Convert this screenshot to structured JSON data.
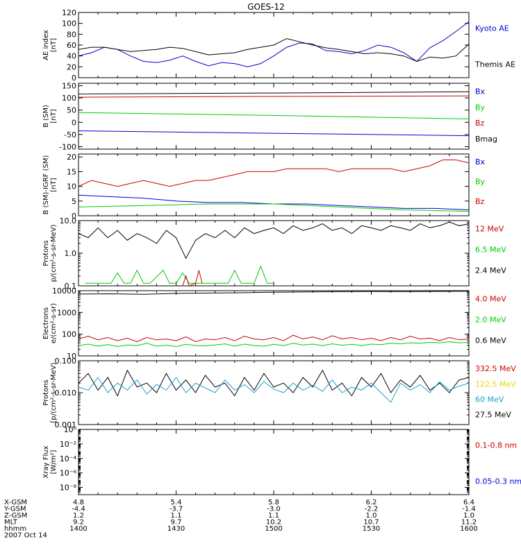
{
  "title": "GOES-12",
  "colors": {
    "black": "#000000",
    "blue": "#0000d0",
    "red": "#cc0000",
    "green": "#00cc00",
    "yellow": "#e8d800",
    "cyan": "#1aa0d0"
  },
  "chart_data": [
    {
      "id": "ae",
      "type": "line",
      "ylabel": [
        "AE index",
        "[nT]"
      ],
      "ylim": [
        0,
        120
      ],
      "yticks": [
        0,
        20,
        40,
        60,
        80,
        100,
        120
      ],
      "legend": [
        {
          "label": "Kyoto AE",
          "color": "blue"
        },
        {
          "label": "Themis AE",
          "color": "black"
        }
      ],
      "series": [
        {
          "name": "Kyoto AE",
          "color": "blue",
          "x": [
            0,
            4,
            8,
            12,
            16,
            20,
            24,
            28,
            32,
            36,
            40,
            44,
            48,
            52,
            56,
            60,
            64,
            68,
            72,
            76,
            80,
            84,
            88,
            92,
            96,
            100,
            104,
            108,
            112,
            116,
            120
          ],
          "y": [
            40,
            46,
            56,
            52,
            40,
            30,
            28,
            32,
            40,
            30,
            22,
            28,
            26,
            20,
            26,
            40,
            56,
            64,
            62,
            50,
            48,
            44,
            50,
            60,
            56,
            46,
            30,
            55,
            68,
            85,
            103
          ]
        },
        {
          "name": "Themis AE",
          "color": "black",
          "x": [
            0,
            4,
            8,
            12,
            16,
            20,
            24,
            28,
            32,
            36,
            40,
            44,
            48,
            52,
            56,
            60,
            64,
            68,
            72,
            76,
            80,
            84,
            88,
            92,
            96,
            100,
            104,
            108,
            112,
            116,
            120
          ],
          "y": [
            52,
            56,
            56,
            52,
            48,
            50,
            52,
            56,
            54,
            48,
            42,
            44,
            46,
            52,
            56,
            60,
            72,
            66,
            60,
            55,
            52,
            48,
            44,
            46,
            44,
            40,
            30,
            38,
            36,
            40,
            62
          ]
        }
      ]
    },
    {
      "id": "bsm",
      "type": "line",
      "ylabel": [
        "B (SM)",
        "[nT]"
      ],
      "ylim": [
        -110,
        160
      ],
      "yticks": [
        -100,
        -50,
        0,
        50,
        100,
        150
      ],
      "legend": [
        {
          "label": "Bx",
          "color": "blue"
        },
        {
          "label": "By",
          "color": "green"
        },
        {
          "label": "Bz",
          "color": "red"
        },
        {
          "label": "Bmag",
          "color": "black"
        }
      ],
      "series": [
        {
          "name": "Bmag",
          "color": "black",
          "x": [
            0,
            60,
            120
          ],
          "y": [
            116,
            120,
            125
          ]
        },
        {
          "name": "Bz",
          "color": "red",
          "x": [
            0,
            60,
            120
          ],
          "y": [
            103,
            106,
            108
          ]
        },
        {
          "name": "By",
          "color": "green",
          "x": [
            0,
            60,
            120
          ],
          "y": [
            40,
            28,
            14
          ]
        },
        {
          "name": "Bx",
          "color": "blue",
          "x": [
            0,
            60,
            120
          ],
          "y": [
            -35,
            -45,
            -55
          ]
        }
      ]
    },
    {
      "id": "bigrf",
      "type": "line",
      "ylabel": [
        "B (SM)-IGRF (SM)",
        "[nT]"
      ],
      "ylim": [
        0,
        21
      ],
      "yticks": [
        0,
        5,
        10,
        15,
        20
      ],
      "legend": [
        {
          "label": "Bx",
          "color": "blue"
        },
        {
          "label": "By",
          "color": "green"
        },
        {
          "label": "Bz",
          "color": "red"
        }
      ],
      "series": [
        {
          "name": "Bz",
          "color": "red",
          "x": [
            0,
            4,
            8,
            12,
            16,
            20,
            24,
            28,
            32,
            36,
            40,
            44,
            48,
            52,
            56,
            60,
            64,
            68,
            72,
            76,
            80,
            84,
            88,
            92,
            96,
            100,
            104,
            108,
            112,
            116,
            120
          ],
          "y": [
            10,
            12,
            11,
            10,
            11,
            12,
            11,
            10,
            11,
            12,
            12,
            13,
            14,
            15,
            15,
            15,
            16,
            16,
            16,
            16,
            15,
            16,
            16,
            16,
            16,
            15,
            16,
            17,
            19,
            19,
            18
          ]
        },
        {
          "name": "Bx",
          "color": "blue",
          "x": [
            0,
            10,
            20,
            30,
            40,
            50,
            60,
            70,
            80,
            90,
            100,
            110,
            120
          ],
          "y": [
            7,
            6.5,
            6,
            5,
            4.5,
            4.5,
            4,
            4,
            3.5,
            3,
            2.5,
            2.5,
            2
          ]
        },
        {
          "name": "By",
          "color": "green",
          "x": [
            0,
            20,
            40,
            60,
            80,
            100,
            120
          ],
          "y": [
            3,
            3.5,
            4,
            4,
            3,
            2,
            1.5
          ]
        }
      ]
    },
    {
      "id": "protons_lo",
      "type": "line",
      "ylabel": [
        "Protons",
        "p/(cm²-s-sr-MeV)"
      ],
      "yscale": "log",
      "ylim": [
        0.1,
        10
      ],
      "yticks": [
        0.1,
        1.0,
        10.0
      ],
      "yticklabels": [
        "0.1",
        "1.0",
        "10.0"
      ],
      "legend": [
        {
          "label": "12 MeV",
          "color": "red"
        },
        {
          "label": "6.5 MeV",
          "color": "green"
        },
        {
          "label": "2.4 MeV",
          "color": "black"
        }
      ],
      "series": [
        {
          "name": "2.4 MeV",
          "color": "black",
          "x": [
            0,
            3,
            6,
            9,
            12,
            15,
            18,
            21,
            24,
            27,
            30,
            33,
            36,
            39,
            42,
            45,
            48,
            51,
            54,
            57,
            60,
            63,
            66,
            69,
            72,
            75,
            78,
            81,
            84,
            87,
            90,
            93,
            96,
            99,
            102,
            105,
            108,
            111,
            114,
            117,
            120
          ],
          "y": [
            4,
            3,
            6,
            3,
            5,
            2.5,
            4,
            3,
            2,
            5,
            3,
            0.7,
            2.5,
            4,
            3,
            5,
            3,
            6,
            4,
            5,
            6,
            4,
            7,
            5,
            6,
            8,
            5,
            6,
            4,
            7,
            6,
            5,
            7,
            6,
            5,
            8,
            6,
            7,
            9,
            7,
            8
          ]
        },
        {
          "name": "6.5 MeV",
          "color": "green",
          "x": [
            2,
            5,
            8,
            10,
            12,
            14,
            16,
            18,
            20,
            22,
            26,
            28,
            30,
            32,
            34,
            36,
            38,
            40,
            42,
            44,
            46,
            48,
            50,
            52,
            54,
            56,
            58,
            60
          ],
          "y": [
            0.12,
            0.12,
            0.12,
            0.12,
            0.25,
            0.12,
            0.12,
            0.3,
            0.12,
            0.12,
            0.3,
            0.12,
            0.12,
            0.25,
            0.12,
            0.12,
            0.12,
            0.12,
            0.12,
            0.12,
            0.12,
            0.3,
            0.12,
            0.12,
            0.12,
            0.4,
            0.12,
            0.12
          ]
        },
        {
          "name": "12 MeV",
          "color": "red",
          "x": [
            32,
            33,
            34,
            36,
            37,
            38
          ],
          "y": [
            0.1,
            0.2,
            0.1,
            0.12,
            0.3,
            0.12
          ]
        }
      ]
    },
    {
      "id": "electrons",
      "type": "line",
      "ylabel": [
        "Electrons",
        "e/(cm²-s-sr)"
      ],
      "yscale": "log",
      "ylim": [
        10,
        10000
      ],
      "yticks": [
        10,
        100,
        1000,
        10000
      ],
      "yticklabels": [
        "10",
        "100",
        "1000",
        "10000"
      ],
      "legend": [
        {
          "label": "4.0 MeV",
          "color": "red"
        },
        {
          "label": "2.0 MeV",
          "color": "green"
        },
        {
          "label": "0.6 MeV",
          "color": "black"
        }
      ],
      "series": [
        {
          "name": "0.6 MeV",
          "color": "black",
          "x": [
            0,
            10,
            20,
            30,
            40,
            50,
            60,
            70,
            80,
            90,
            100,
            110,
            120
          ],
          "y": [
            7000,
            7200,
            6800,
            7500,
            7800,
            8000,
            8500,
            8800,
            9000,
            9200,
            9000,
            9300,
            9500
          ]
        },
        {
          "name": "4.0 MeV",
          "color": "red",
          "x": [
            0,
            3,
            6,
            9,
            12,
            15,
            18,
            21,
            24,
            27,
            30,
            33,
            36,
            39,
            42,
            45,
            48,
            51,
            54,
            57,
            60,
            63,
            66,
            69,
            72,
            75,
            78,
            81,
            84,
            87,
            90,
            93,
            96,
            99,
            102,
            105,
            108,
            111,
            114,
            117,
            120
          ],
          "y": [
            60,
            80,
            55,
            70,
            50,
            65,
            45,
            70,
            55,
            60,
            50,
            75,
            45,
            60,
            55,
            70,
            50,
            80,
            60,
            55,
            70,
            50,
            90,
            60,
            75,
            55,
            85,
            60,
            70,
            55,
            65,
            50,
            70,
            55,
            80,
            60,
            65,
            50,
            70,
            55,
            60
          ]
        },
        {
          "name": "2.0 MeV",
          "color": "green",
          "x": [
            0,
            3,
            6,
            9,
            12,
            15,
            18,
            21,
            24,
            27,
            30,
            33,
            36,
            39,
            42,
            45,
            48,
            51,
            54,
            57,
            60,
            63,
            66,
            69,
            72,
            75,
            78,
            81,
            84,
            87,
            90,
            93,
            96,
            99,
            102,
            105,
            108,
            111,
            114,
            117,
            120
          ],
          "y": [
            30,
            35,
            28,
            33,
            27,
            32,
            30,
            38,
            28,
            31,
            27,
            34,
            30,
            29,
            32,
            36,
            28,
            35,
            30,
            28,
            34,
            30,
            38,
            32,
            35,
            30,
            36,
            31,
            34,
            30,
            35,
            33,
            38,
            36,
            40,
            38,
            42,
            40,
            45,
            40,
            42
          ]
        }
      ]
    },
    {
      "id": "protons_hi",
      "type": "line",
      "ylabel": [
        "Protons",
        "[p/(cm²-s-sr-MeV)"
      ],
      "yscale": "log",
      "ylim": [
        0.001,
        0.1
      ],
      "yticks": [
        0.001,
        0.01,
        0.1
      ],
      "yticklabels": [
        "0.001",
        "0.010",
        "0.100"
      ],
      "legend": [
        {
          "label": "332.5 MeV",
          "color": "red"
        },
        {
          "label": "122.5 MeV",
          "color": "yellow"
        },
        {
          "label": "60 MeV",
          "color": "cyan"
        },
        {
          "label": "27.5 MeV",
          "color": "black"
        }
      ],
      "series": [
        {
          "name": "27.5 MeV",
          "color": "black",
          "x": [
            0,
            3,
            6,
            9,
            12,
            15,
            18,
            21,
            24,
            27,
            30,
            33,
            36,
            39,
            42,
            45,
            48,
            51,
            54,
            57,
            60,
            63,
            66,
            69,
            72,
            75,
            78,
            81,
            84,
            87,
            90,
            93,
            96,
            99,
            102,
            105,
            108,
            111,
            114,
            117,
            120
          ],
          "y": [
            0.02,
            0.04,
            0.012,
            0.03,
            0.008,
            0.05,
            0.015,
            0.02,
            0.01,
            0.04,
            0.012,
            0.025,
            0.01,
            0.035,
            0.015,
            0.02,
            0.008,
            0.03,
            0.012,
            0.04,
            0.015,
            0.02,
            0.01,
            0.03,
            0.015,
            0.05,
            0.012,
            0.02,
            0.008,
            0.03,
            0.015,
            0.04,
            0.01,
            0.025,
            0.015,
            0.035,
            0.012,
            0.02,
            0.01,
            0.025,
            0.03
          ]
        },
        {
          "name": "60 MeV",
          "color": "cyan",
          "x": [
            0,
            3,
            6,
            9,
            12,
            15,
            18,
            21,
            24,
            27,
            30,
            33,
            36,
            39,
            42,
            45,
            48,
            51,
            54,
            57,
            60,
            63,
            66,
            69,
            72,
            75,
            78,
            81,
            84,
            87,
            90,
            93,
            96,
            99,
            102,
            105,
            108,
            111,
            114,
            117,
            120
          ],
          "y": [
            0.015,
            0.012,
            0.03,
            0.01,
            0.02,
            0.012,
            0.025,
            0.009,
            0.018,
            0.012,
            0.03,
            0.01,
            0.02,
            0.014,
            0.01,
            0.025,
            0.012,
            0.018,
            0.01,
            0.022,
            0.013,
            0.01,
            0.02,
            0.012,
            0.017,
            0.011,
            0.025,
            0.01,
            0.015,
            0.012,
            0.02,
            0.01,
            0.005,
            0.02,
            0.012,
            0.018,
            0.01,
            0.022,
            0.012,
            0.016,
            0.02
          ]
        }
      ]
    },
    {
      "id": "xray",
      "type": "line",
      "ylabel": [
        "Xray Flux",
        "[W/m²]"
      ],
      "yscale": "log",
      "ylim": [
        1e-09,
        1
      ],
      "yticks": [
        1e-08,
        1e-06,
        0.0001,
        0.01,
        1
      ],
      "yticklabels": [
        "10⁻⁸",
        "10⁻⁶",
        "10⁻⁴",
        "10⁻²",
        "10⁰"
      ],
      "legend": [
        {
          "label": "0.1-0.8 nm",
          "color": "red"
        },
        {
          "label": "0.05-0.3 nm",
          "color": "blue"
        }
      ],
      "series": []
    }
  ],
  "xaxis": {
    "ticks_min": [
      0,
      30,
      60,
      90,
      120
    ],
    "rows": [
      {
        "label": "X-GSM",
        "values": [
          "4.8",
          "5.4",
          "5.8",
          "6.2",
          "6.4"
        ]
      },
      {
        "label": "Y-GSM",
        "values": [
          "-4.4",
          "-3.7",
          "-3.0",
          "-2.2",
          "-1.4"
        ]
      },
      {
        "label": "Z-GSM",
        "values": [
          "1.2",
          "1.1",
          "1.1",
          "1.0",
          "1.0"
        ]
      },
      {
        "label": "MLT",
        "values": [
          "9.2",
          "9.7",
          "10.2",
          "10.7",
          "11.2"
        ]
      },
      {
        "label": "hhmm",
        "values": [
          "1400",
          "1430",
          "1500",
          "1530",
          "1600"
        ]
      }
    ],
    "date": "2007 Oct 14"
  }
}
